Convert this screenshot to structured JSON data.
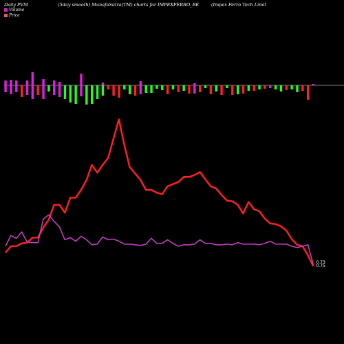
{
  "header": {
    "left": "Daily PVM",
    "middle": "(5day smooth) MunafaSutra(TM) charts for IMPEXFERRO_BE",
    "right": "(Impex Ferro  Tech Limit"
  },
  "legend": [
    {
      "label": "Volume",
      "color": "#d020d0"
    },
    {
      "label": "Price",
      "color": "#e06060"
    }
  ],
  "end_labels": {
    "price": "0.73",
    "pvm": "0.75"
  },
  "colors": {
    "background": "#000000",
    "price_line": "#ff2020",
    "pvm_line": "#c040c0",
    "bar_up": "#e020e0",
    "bar_down": "#ff2020",
    "bar_green": "#20ff20",
    "baseline": "#ffffff"
  },
  "chart_data": {
    "type": "bar+line",
    "n": 58,
    "bar_colors": [
      "m",
      "m",
      "m",
      "r",
      "m",
      "m",
      "r",
      "m",
      "g",
      "m",
      "m",
      "g",
      "g",
      "g",
      "m",
      "g",
      "g",
      "g",
      "g",
      "r",
      "r",
      "r",
      "g",
      "g",
      "r",
      "m",
      "g",
      "g",
      "g",
      "g",
      "r",
      "g",
      "r",
      "g",
      "r",
      "m",
      "r",
      "g",
      "r",
      "g",
      "r",
      "g",
      "r",
      "g",
      "r",
      "g",
      "r",
      "g",
      "r",
      "m",
      "g",
      "g",
      "r",
      "g",
      "g",
      "r",
      "r",
      "m"
    ],
    "bar_up": [
      7,
      8,
      7,
      0,
      7,
      19,
      0,
      9,
      0,
      7,
      5,
      0,
      0,
      0,
      17,
      0,
      0,
      0,
      4,
      0,
      0,
      0,
      0,
      0,
      0,
      6,
      0,
      0,
      0,
      0,
      0,
      0,
      0,
      0,
      0,
      3,
      0,
      0,
      0,
      0,
      0,
      0,
      0,
      0,
      0,
      0,
      0,
      0,
      0,
      0,
      0,
      0,
      0,
      0,
      0,
      0,
      0,
      2
    ],
    "bar_down": [
      10,
      13,
      10,
      17,
      14,
      20,
      14,
      20,
      9,
      14,
      17,
      20,
      25,
      27,
      16,
      28,
      27,
      20,
      15,
      6,
      15,
      18,
      6,
      13,
      15,
      13,
      11,
      11,
      5,
      7,
      13,
      6,
      10,
      8,
      12,
      12,
      10,
      4,
      13,
      9,
      14,
      4,
      14,
      13,
      12,
      8,
      8,
      6,
      5,
      4,
      6,
      9,
      7,
      6,
      10,
      8,
      21,
      0
    ],
    "price": [
      0.92,
      1.01,
      1.01,
      1.05,
      1.06,
      1.13,
      1.13,
      1.27,
      1.38,
      1.59,
      1.59,
      1.48,
      1.69,
      1.69,
      1.8,
      1.94,
      2.15,
      2.04,
      2.15,
      2.25,
      2.52,
      2.79,
      2.43,
      2.12,
      2.03,
      1.94,
      1.8,
      1.8,
      1.76,
      1.74,
      1.85,
      1.88,
      1.91,
      1.98,
      1.98,
      2.01,
      2.05,
      1.95,
      1.85,
      1.82,
      1.73,
      1.65,
      1.64,
      1.59,
      1.47,
      1.63,
      1.53,
      1.5,
      1.4,
      1.33,
      1.32,
      1.29,
      1.23,
      1.11,
      1.03,
      1.01,
      0.88,
      0.73
    ],
    "pvm": [
      1.01,
      1.16,
      1.12,
      1.21,
      1.07,
      1.06,
      1.06,
      1.39,
      1.45,
      1.36,
      1.28,
      1.1,
      1.13,
      1.08,
      1.15,
      1.1,
      1.03,
      1.04,
      1.14,
      1.1,
      1.11,
      1.08,
      1.04,
      1.04,
      1.03,
      1.02,
      1.04,
      1.12,
      1.05,
      1.05,
      1.1,
      1.05,
      1.01,
      1.03,
      1.03,
      1.04,
      1.1,
      1.05,
      1.05,
      1.03,
      1.03,
      1.04,
      1.03,
      1.06,
      1.04,
      1.04,
      1.04,
      1.03,
      1.05,
      1.08,
      1.04,
      1.04,
      1.04,
      1.01,
      0.99,
      1.01,
      1.03,
      0.75
    ],
    "ylim": [
      0.7,
      2.9
    ]
  }
}
